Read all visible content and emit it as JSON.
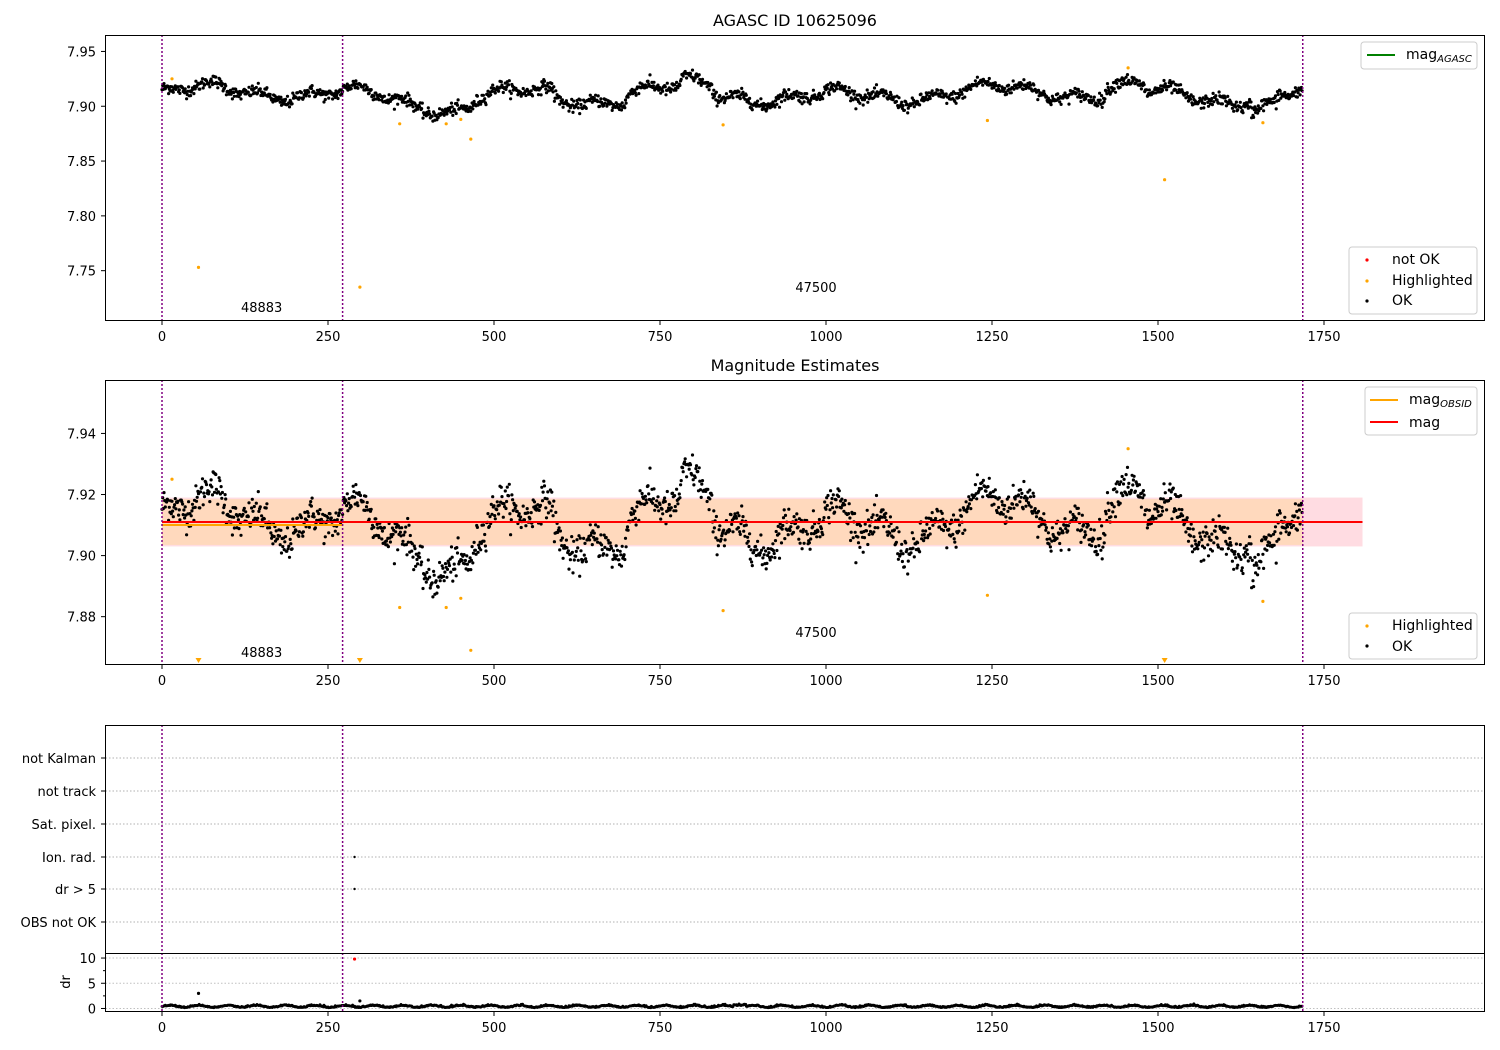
{
  "colors": {
    "ok": "#000000",
    "highlighted": "#ffa500",
    "not_ok": "#ff0000",
    "mag_agasc": "#008000",
    "mag_obsid": "#ffa500",
    "mag": "#ff0000",
    "obs_boundary": "#800080",
    "band_pink": "#ffc0cb",
    "band_orange": "#ffd8b0"
  },
  "x_ticks": [
    "0",
    "250",
    "500",
    "750",
    "1000",
    "1250",
    "1500",
    "1750"
  ],
  "obs_boundaries": [
    0,
    272,
    1718
  ],
  "obs_labels": [
    {
      "id": "48883",
      "x": 135
    },
    {
      "id": "47500",
      "x": 1000
    }
  ],
  "panel1": {
    "title": "AGASC ID 10625096",
    "y_ticks": [
      "7.75",
      "7.80",
      "7.85",
      "7.90",
      "7.95"
    ],
    "legend_line": {
      "label": "mag",
      "sub": "AGASC"
    },
    "legend_points": [
      "not OK",
      "Highlighted",
      "OK"
    ]
  },
  "panel2": {
    "title": "Magnitude Estimates",
    "y_ticks": [
      "7.88",
      "7.90",
      "7.92",
      "7.94"
    ],
    "legend_lines": [
      {
        "label": "mag",
        "sub": "OBSID",
        "color_key": "mag_obsid"
      },
      {
        "label": "mag",
        "sub": "",
        "color_key": "mag"
      }
    ],
    "legend_points": [
      "Highlighted",
      "OK"
    ]
  },
  "panel3": {
    "flag_labels": [
      "not Kalman",
      "not track",
      "Sat. pixel.",
      "Ion. rad.",
      "dr > 5",
      "OBS not OK"
    ],
    "flag_points": [
      {
        "flag": "Ion. rad.",
        "x": 290
      },
      {
        "flag": "dr > 5",
        "x": 290
      }
    ]
  },
  "panel4": {
    "ylabel": "dr",
    "y_ticks": [
      "0",
      "5",
      "10"
    ]
  },
  "chart_data": [
    {
      "type": "scatter",
      "title": "AGASC ID 10625096",
      "xlim": [
        -87,
        1995
      ],
      "ylim": [
        7.705,
        7.965
      ],
      "mag_agasc": 7.911,
      "series": [
        {
          "name": "OK",
          "pattern": "~1718 samples, baseline 7.911 with slow drift ±0.012"
        },
        {
          "name": "Highlighted",
          "points": [
            [
              15,
              7.925
            ],
            [
              55,
              7.753
            ],
            [
              298,
              7.735
            ],
            [
              358,
              7.884
            ],
            [
              428,
              7.884
            ],
            [
              450,
              7.888
            ],
            [
              465,
              7.87
            ],
            [
              845,
              7.883
            ],
            [
              1243,
              7.887
            ],
            [
              1455,
              7.935
            ],
            [
              1510,
              7.833
            ],
            [
              1658,
              7.885
            ]
          ]
        }
      ]
    },
    {
      "type": "scatter",
      "title": "Magnitude Estimates",
      "xlim": [
        -87,
        1995
      ],
      "ylim": [
        7.8645,
        7.9575
      ],
      "mag": 7.911,
      "mag_band": [
        7.903,
        7.919
      ],
      "series": [
        {
          "name": "mag_OBSID",
          "points": [
            [
              0,
              7.91
            ],
            [
              272,
              7.91
            ],
            [
              272,
              7.911
            ],
            [
              1718,
              7.911
            ]
          ]
        },
        {
          "name": "Highlighted",
          "points": [
            [
              15,
              7.925
            ],
            [
              358,
              7.883
            ],
            [
              428,
              7.883
            ],
            [
              450,
              7.886
            ],
            [
              465,
              7.869
            ],
            [
              845,
              7.882
            ],
            [
              1243,
              7.887
            ],
            [
              1455,
              7.935
            ],
            [
              1658,
              7.885
            ]
          ]
        }
      ]
    },
    {
      "type": "scatter",
      "ylabel": "dr",
      "ylim": [
        -0.5,
        11
      ],
      "series": [
        {
          "name": "dr",
          "pattern": "~0.3 baseline"
        },
        {
          "name": "outliers",
          "points": [
            [
              55,
              3.0
            ],
            [
              290,
              9.8
            ],
            [
              298,
              1.5
            ]
          ]
        }
      ]
    }
  ]
}
